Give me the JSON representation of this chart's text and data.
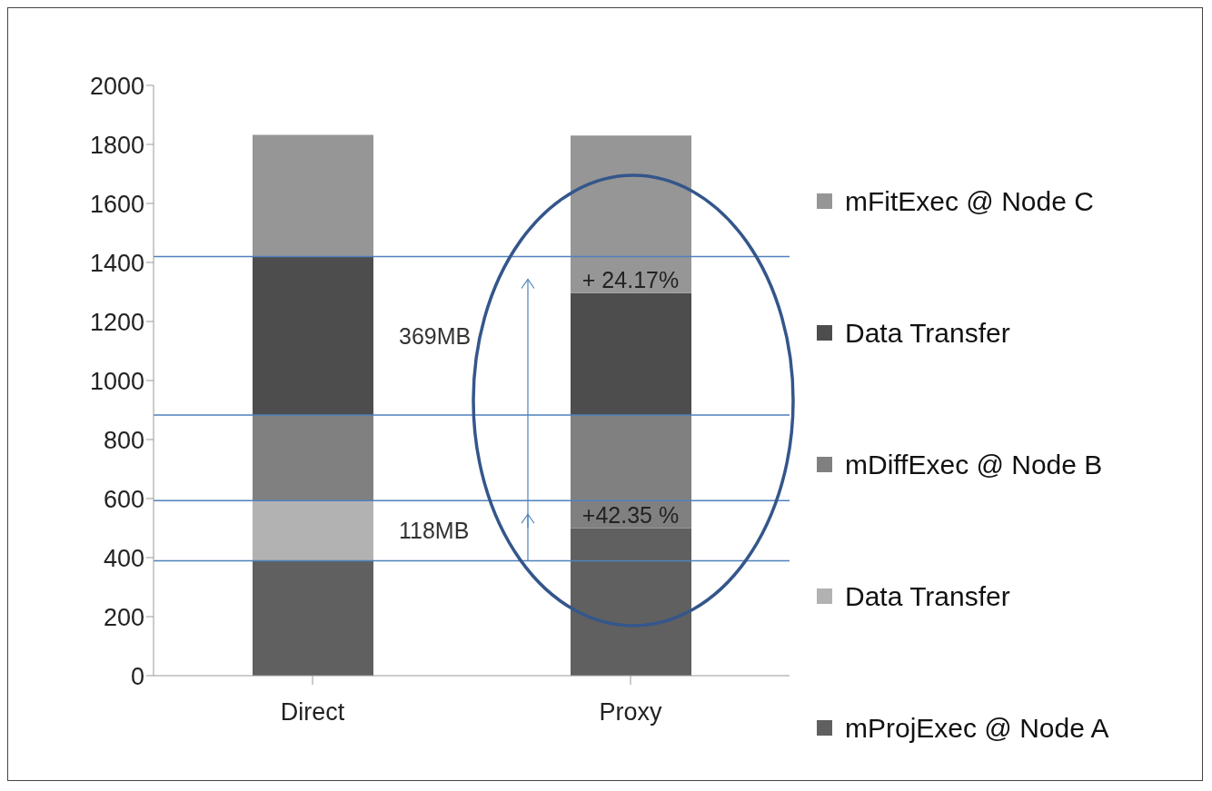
{
  "chart_data": {
    "type": "bar",
    "stacked": true,
    "categories": [
      "Direct",
      "Proxy"
    ],
    "series": [
      {
        "name": "mProjExec @ Node A",
        "color": "#606060",
        "values": [
          389,
          500
        ]
      },
      {
        "name": "Data Transfer",
        "color": "#b2b2b2",
        "values": [
          204,
          0
        ]
      },
      {
        "name": "mDiffExec @ Node B",
        "color": "#808080",
        "values": [
          290,
          383
        ]
      },
      {
        "name": "Data Transfer",
        "color": "#4d4d4d",
        "values": [
          537,
          413
        ]
      },
      {
        "name": "mFitExec @ Node C",
        "color": "#969696",
        "values": [
          412,
          534
        ]
      }
    ],
    "ylim": [
      0,
      2000
    ],
    "yticks": [
      0,
      200,
      400,
      600,
      800,
      1000,
      1200,
      1400,
      1600,
      1800,
      2000
    ],
    "grid": false,
    "legend": "right",
    "ref_lines": [
      {
        "axis": "y",
        "value": 1420,
        "color": "#4f81bd"
      },
      {
        "axis": "y",
        "value": 883,
        "color": "#4f81bd"
      },
      {
        "axis": "y",
        "value": 593,
        "color": "#4f81bd"
      },
      {
        "axis": "y",
        "value": 389,
        "color": "#4f81bd"
      }
    ],
    "annotations": [
      "369MB",
      "118MB",
      "+ 24.17%",
      "+42.35 %"
    ]
  }
}
